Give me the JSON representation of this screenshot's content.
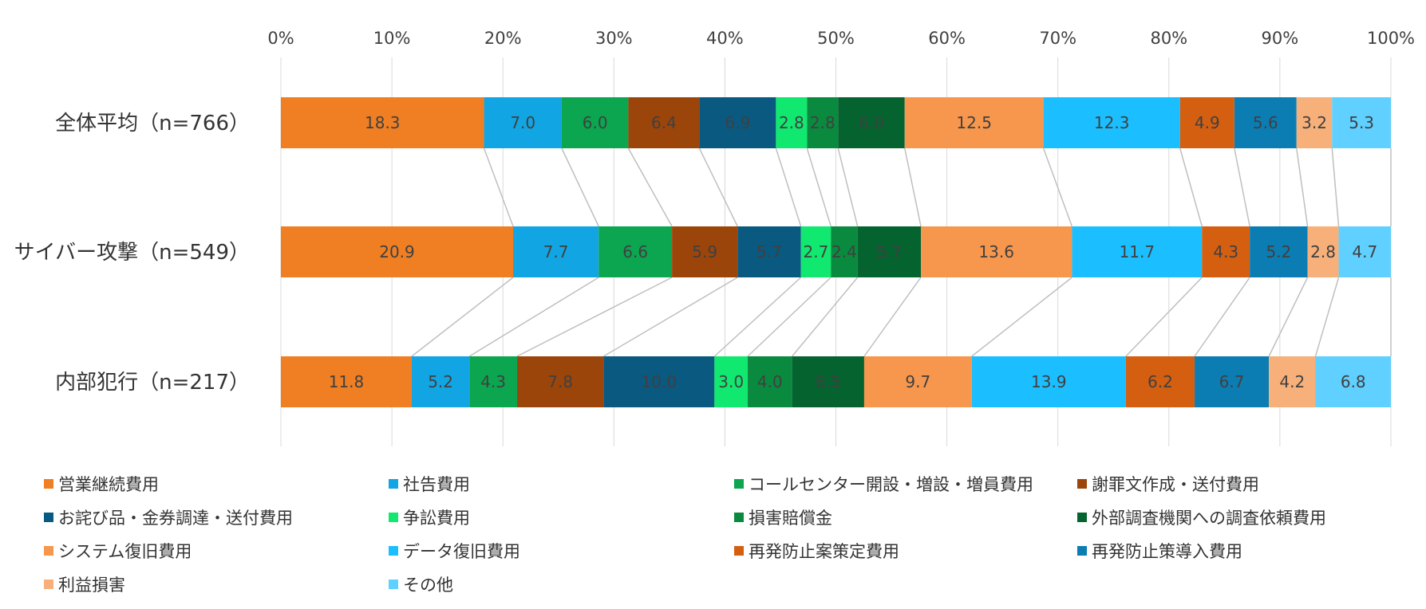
{
  "chart_data": {
    "type": "bar",
    "orientation": "horizontal",
    "stacked": true,
    "percent_stacked": true,
    "title": "",
    "xlabel": "",
    "ylabel": "",
    "xlim": [
      0,
      100
    ],
    "x_ticks": [
      "0%",
      "10%",
      "20%",
      "30%",
      "40%",
      "50%",
      "60%",
      "70%",
      "80%",
      "90%",
      "100%"
    ],
    "x_axis_position": "top",
    "grid": true,
    "series_lines": true,
    "legend_position": "bottom",
    "categories": [
      "全体平均（n=766）",
      "サイバー攻撃（n=549）",
      "内部犯行（n=217）"
    ],
    "series": [
      {
        "name": "営業継続費用",
        "color": "#F07F23",
        "values": [
          18.3,
          20.9,
          11.8
        ]
      },
      {
        "name": "社告費用",
        "color": "#12A5E3",
        "values": [
          7.0,
          7.7,
          5.2
        ]
      },
      {
        "name": "コールセンター開設・増設・増員費用",
        "color": "#0BA64F",
        "values": [
          6.0,
          6.6,
          4.3
        ]
      },
      {
        "name": "謝罪文作成・送付費用",
        "color": "#9C450B",
        "values": [
          6.4,
          5.9,
          7.8
        ]
      },
      {
        "name": "お詫び品・金券調達・送付費用",
        "color": "#0A5980",
        "values": [
          6.9,
          5.7,
          10.0
        ]
      },
      {
        "name": "争訟費用",
        "color": "#11E86F",
        "values": [
          2.8,
          2.7,
          3.0
        ]
      },
      {
        "name": "損害賠償金",
        "color": "#0A8A3F",
        "values": [
          2.8,
          2.4,
          4.0
        ]
      },
      {
        "name": "外部調査機関への調査依頼費用",
        "color": "#05632F",
        "values": [
          6.0,
          5.7,
          6.5
        ]
      },
      {
        "name": "システム復旧費用",
        "color": "#F7974D",
        "values": [
          12.5,
          13.6,
          9.7
        ]
      },
      {
        "name": "データ復旧費用",
        "color": "#1BBFFF",
        "values": [
          12.3,
          11.7,
          13.9
        ]
      },
      {
        "name": "再発防止案策定費用",
        "color": "#D45F11",
        "values": [
          4.9,
          4.3,
          6.2
        ]
      },
      {
        "name": "再発防止策導入費用",
        "color": "#0B7DB3",
        "values": [
          5.6,
          5.2,
          6.7
        ]
      },
      {
        "name": "利益損害",
        "color": "#F8B07A",
        "values": [
          3.2,
          2.8,
          4.2
        ]
      },
      {
        "name": "その他",
        "color": "#5FD0FF",
        "values": [
          5.3,
          4.7,
          6.8
        ]
      }
    ]
  }
}
